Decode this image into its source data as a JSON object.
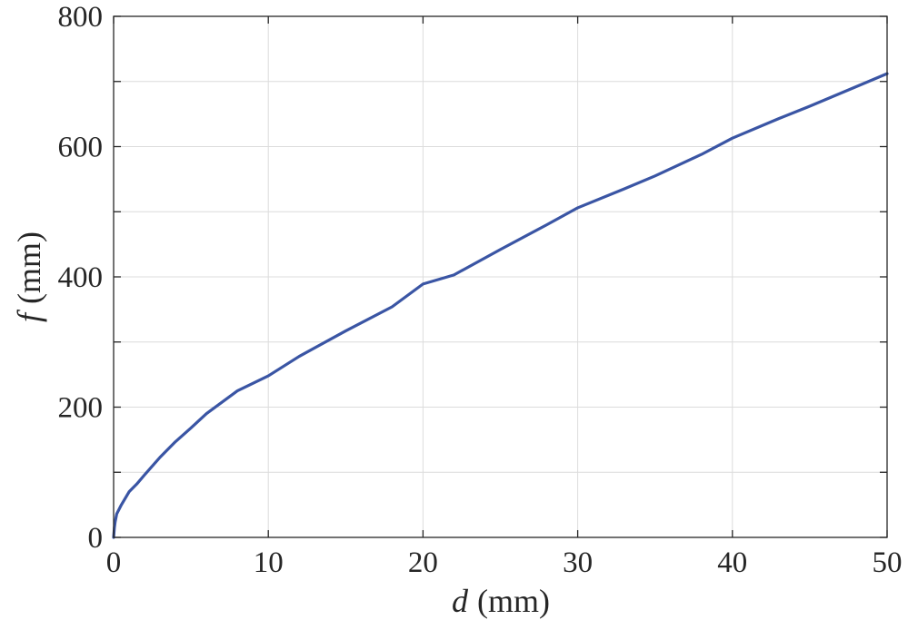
{
  "chart_data": {
    "type": "line",
    "xlabel": {
      "symbol": "d",
      "unit": "(mm)"
    },
    "ylabel": {
      "symbol": "f",
      "unit": "(mm)"
    },
    "xlim": [
      0,
      50
    ],
    "ylim": [
      0,
      800
    ],
    "xticks": [
      "0",
      "10",
      "20",
      "30",
      "40",
      "50"
    ],
    "yticks": [
      "0",
      "200",
      "400",
      "600",
      "800"
    ],
    "grid": true,
    "series": [
      {
        "color": "#3a55a4",
        "x": [
          0,
          0.05,
          0.1,
          0.2,
          0.5,
          1,
          1.5,
          2,
          3,
          4,
          5,
          6,
          8,
          10,
          12,
          15,
          18,
          20,
          22,
          25,
          28,
          30,
          33,
          35,
          38,
          40,
          43,
          45,
          48,
          50
        ],
        "y": [
          0,
          15,
          24,
          36,
          50,
          70,
          82,
          96,
          123,
          147,
          168,
          190,
          225,
          248,
          278,
          317,
          354,
          389,
          403,
          442,
          480,
          506,
          535,
          555,
          588,
          613,
          643,
          662,
          692,
          712
        ]
      }
    ]
  }
}
